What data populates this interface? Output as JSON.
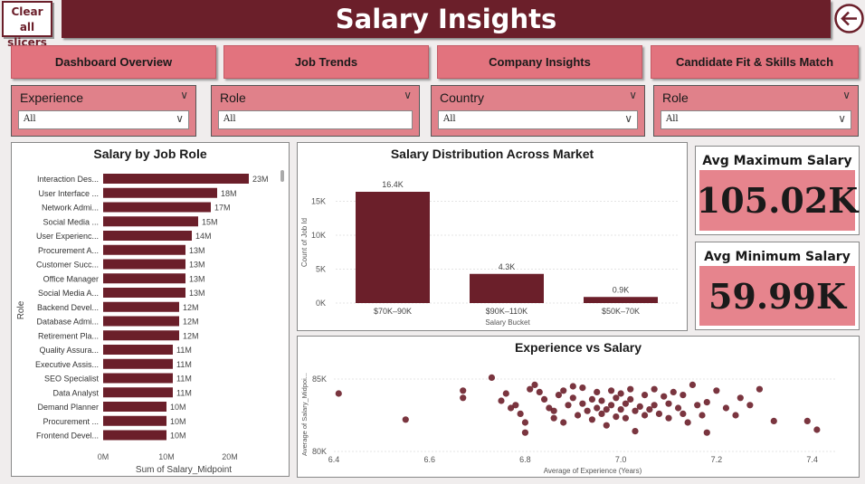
{
  "header": {
    "clear_label": "Clear all slicers",
    "title": "Salary Insights"
  },
  "nav": [
    {
      "label": "Dashboard Overview"
    },
    {
      "label": "Job Trends"
    },
    {
      "label": "Company Insights"
    },
    {
      "label": "Candidate Fit & Skills Match"
    }
  ],
  "slicers": [
    {
      "label": "Experience",
      "value": "All"
    },
    {
      "label": "Role",
      "value": "All"
    },
    {
      "label": "Country",
      "value": "All"
    },
    {
      "label": "Role",
      "value": "All"
    }
  ],
  "kpis": [
    {
      "title": "Avg Maximum Salary",
      "value": "105.02K"
    },
    {
      "title": "Avg Minimum Salary",
      "value": "59.99K"
    }
  ],
  "colors": {
    "accent": "#6b1f2a",
    "card_fill": "#e6848d",
    "nav_fill": "#e2737e"
  },
  "chart_data": [
    {
      "type": "bar",
      "orientation": "horizontal",
      "title": "Salary by Job Role",
      "xlabel": "Sum of Salary_Midpoint",
      "ylabel": "Role",
      "xlim": [
        0,
        25000000
      ],
      "xticks": [
        "0M",
        "10M",
        "20M"
      ],
      "categories": [
        "Interaction Des...",
        "User Interface ...",
        "Network Admi...",
        "Social Media ...",
        "User Experienc...",
        "Procurement A...",
        "Customer Succ...",
        "Office Manager",
        "Social Media A...",
        "Backend Devel...",
        "Database Admi...",
        "Retirement Pla...",
        "Quality Assura...",
        "Executive Assis...",
        "SEO Specialist",
        "Data Analyst",
        "Demand Planner",
        "Procurement ...",
        "Frontend Devel..."
      ],
      "values": [
        23000000,
        18000000,
        17000000,
        15000000,
        14000000,
        13000000,
        13000000,
        13000000,
        13000000,
        12000000,
        12000000,
        12000000,
        11000000,
        11000000,
        11000000,
        11000000,
        10000000,
        10000000,
        10000000
      ],
      "labels": [
        "23M",
        "18M",
        "17M",
        "15M",
        "14M",
        "13M",
        "13M",
        "13M",
        "13M",
        "12M",
        "12M",
        "12M",
        "11M",
        "11M",
        "11M",
        "11M",
        "10M",
        "10M",
        "10M"
      ]
    },
    {
      "type": "bar",
      "title": "Salary Distribution Across Market",
      "xlabel": "Salary Bucket",
      "ylabel": "Count of Job Id",
      "ylim": [
        0,
        18000
      ],
      "yticks": [
        "0K",
        "5K",
        "10K",
        "15K"
      ],
      "categories": [
        "$70K–90K",
        "$90K–110K",
        "$50K–70K"
      ],
      "values": [
        16400,
        4300,
        900
      ],
      "labels": [
        "16.4K",
        "4.3K",
        "0.9K"
      ]
    },
    {
      "type": "scatter",
      "title": "Experience vs Salary",
      "xlabel": "Average of Experience (Years)",
      "ylabel": "Average of Salary_Midpoi...",
      "xlim": [
        6.4,
        7.45
      ],
      "ylim": [
        80000,
        86000
      ],
      "xticks": [
        "6.4",
        "6.6",
        "6.8",
        "7.0",
        "7.2",
        "7.4"
      ],
      "yticks": [
        "80K",
        "85K"
      ],
      "points": [
        [
          6.41,
          84000
        ],
        [
          6.55,
          82200
        ],
        [
          6.67,
          84200
        ],
        [
          6.67,
          83700
        ],
        [
          6.73,
          85100
        ],
        [
          6.75,
          83500
        ],
        [
          6.76,
          84000
        ],
        [
          6.77,
          83000
        ],
        [
          6.78,
          83200
        ],
        [
          6.79,
          82600
        ],
        [
          6.8,
          82000
        ],
        [
          6.8,
          81300
        ],
        [
          6.81,
          84300
        ],
        [
          6.82,
          84600
        ],
        [
          6.83,
          84100
        ],
        [
          6.84,
          83600
        ],
        [
          6.85,
          83000
        ],
        [
          6.86,
          82300
        ],
        [
          6.86,
          82800
        ],
        [
          6.87,
          83900
        ],
        [
          6.88,
          84200
        ],
        [
          6.88,
          82000
        ],
        [
          6.89,
          83200
        ],
        [
          6.9,
          84500
        ],
        [
          6.9,
          83700
        ],
        [
          6.91,
          82500
        ],
        [
          6.92,
          84400
        ],
        [
          6.92,
          83300
        ],
        [
          6.93,
          82800
        ],
        [
          6.94,
          83600
        ],
        [
          6.94,
          82200
        ],
        [
          6.95,
          84100
        ],
        [
          6.95,
          83000
        ],
        [
          6.96,
          83500
        ],
        [
          6.96,
          82600
        ],
        [
          6.97,
          82900
        ],
        [
          6.97,
          81800
        ],
        [
          6.98,
          84200
        ],
        [
          6.98,
          83200
        ],
        [
          6.99,
          82400
        ],
        [
          6.99,
          83700
        ],
        [
          7.0,
          84000
        ],
        [
          7.0,
          82900
        ],
        [
          7.01,
          83300
        ],
        [
          7.01,
          82300
        ],
        [
          7.02,
          84300
        ],
        [
          7.02,
          83600
        ],
        [
          7.03,
          82800
        ],
        [
          7.03,
          81400
        ],
        [
          7.04,
          83100
        ],
        [
          7.05,
          82500
        ],
        [
          7.05,
          83900
        ],
        [
          7.06,
          82900
        ],
        [
          7.07,
          83200
        ],
        [
          7.07,
          84300
        ],
        [
          7.08,
          82600
        ],
        [
          7.09,
          83800
        ],
        [
          7.1,
          83300
        ],
        [
          7.1,
          82300
        ],
        [
          7.11,
          84100
        ],
        [
          7.12,
          83000
        ],
        [
          7.13,
          82600
        ],
        [
          7.13,
          83900
        ],
        [
          7.14,
          82000
        ],
        [
          7.15,
          84600
        ],
        [
          7.16,
          83200
        ],
        [
          7.17,
          82500
        ],
        [
          7.18,
          83400
        ],
        [
          7.18,
          81300
        ],
        [
          7.2,
          84200
        ],
        [
          7.22,
          83000
        ],
        [
          7.24,
          82500
        ],
        [
          7.25,
          83700
        ],
        [
          7.27,
          83200
        ],
        [
          7.29,
          84300
        ],
        [
          7.32,
          82100
        ],
        [
          7.39,
          82100
        ],
        [
          7.41,
          81500
        ]
      ]
    }
  ]
}
